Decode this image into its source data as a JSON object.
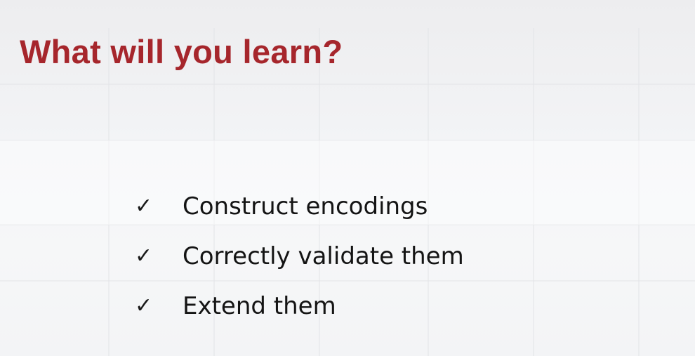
{
  "slide": {
    "title": "What will you learn?",
    "title_color": "#a6262c",
    "check_glyph": "✓",
    "items": [
      {
        "label": "Construct encodings"
      },
      {
        "label": "Correctly validate them"
      },
      {
        "label": "Extend them"
      }
    ]
  }
}
